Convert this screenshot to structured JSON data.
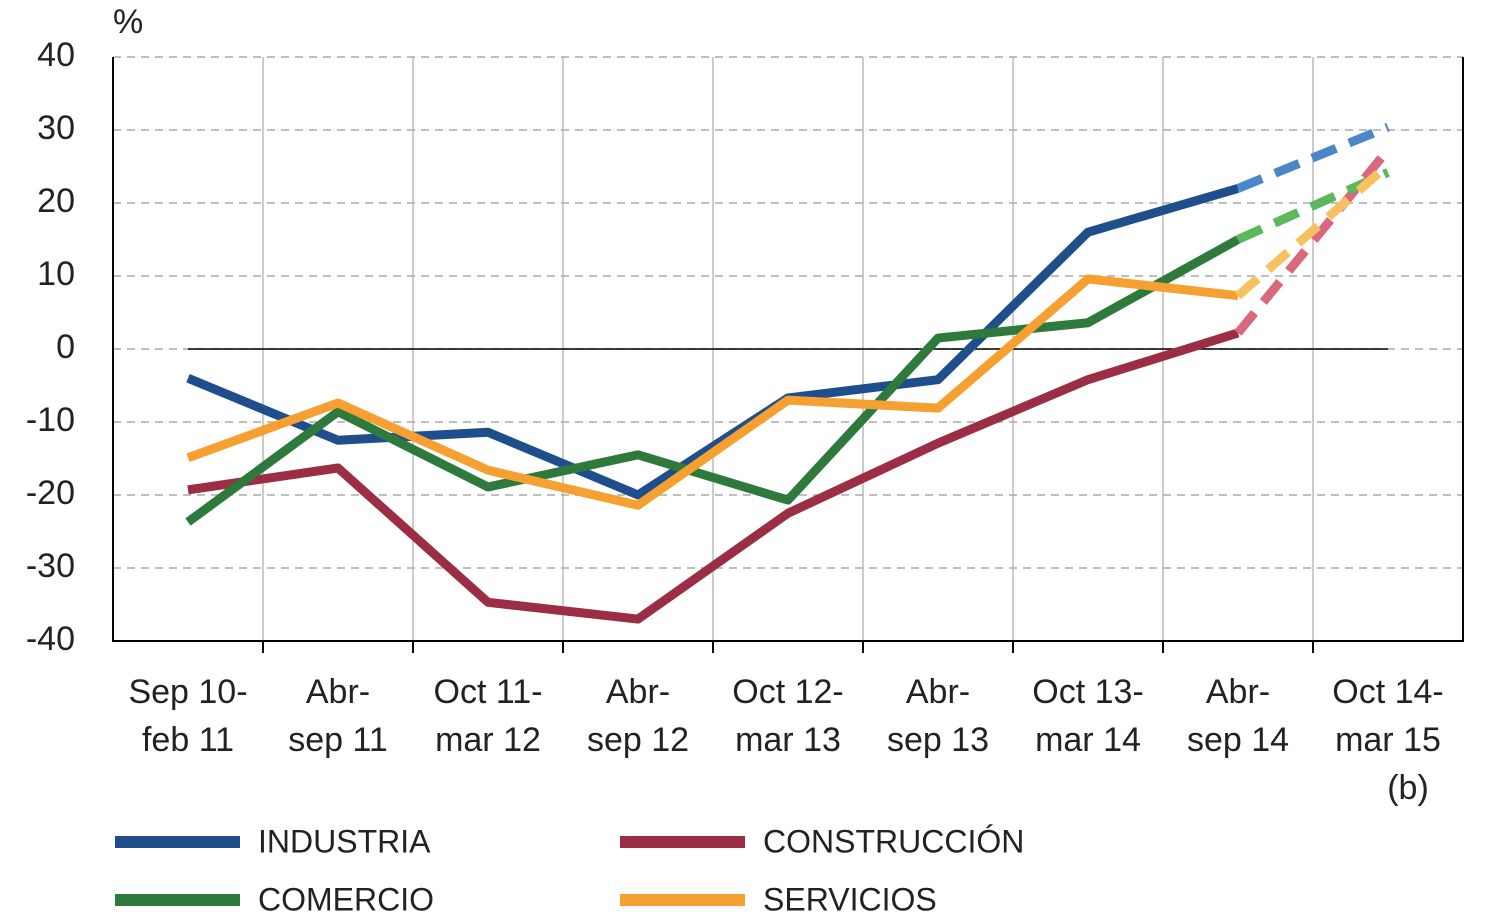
{
  "chart_data": {
    "type": "line",
    "y_unit": "%",
    "categories": [
      "Sep 10-\nfeb 11",
      "Abr-\nsep 11",
      "Oct 11-\nmar 12",
      "Abr-\nsep 12",
      "Oct 12-\nmar 13",
      "Abr-\nsep 13",
      "Oct 13-\nmar 14",
      "Abr-\nsep 14",
      "Oct 14-\nmar 15\n(b)"
    ],
    "series": [
      {
        "name": "INDUSTRIA",
        "color": "#1f4e8c",
        "forecast_color": "#4a86c8",
        "values": [
          -4,
          -12.5,
          -11.4,
          -20,
          -6.7,
          -4.2,
          16,
          22,
          30.4
        ]
      },
      {
        "name": "CONSTRUCCIÓN",
        "color": "#9b2d45",
        "forecast_color": "#d9687e",
        "values": [
          -19.3,
          -16.3,
          -34.7,
          -37,
          -22.5,
          -12.9,
          -4.2,
          2.2,
          27.3
        ]
      },
      {
        "name": "COMERCIO",
        "color": "#2e7a3c",
        "forecast_color": "#5cb85c",
        "values": [
          -23.7,
          -8.6,
          -18.9,
          -14.5,
          -20.7,
          1.5,
          3.6,
          15,
          24.2
        ]
      },
      {
        "name": "SERVICIOS",
        "color": "#f5a030",
        "forecast_color": "#f9c060",
        "values": [
          -14.9,
          -7.4,
          -16.6,
          -21.4,
          -7,
          -8.1,
          9.6,
          7.3,
          25.2
        ]
      }
    ],
    "forecast_from_index": 7,
    "ylim": [
      -40,
      40
    ],
    "yticks": [
      -40,
      -30,
      -20,
      -10,
      0,
      10,
      20,
      30,
      40
    ],
    "grid": true
  }
}
